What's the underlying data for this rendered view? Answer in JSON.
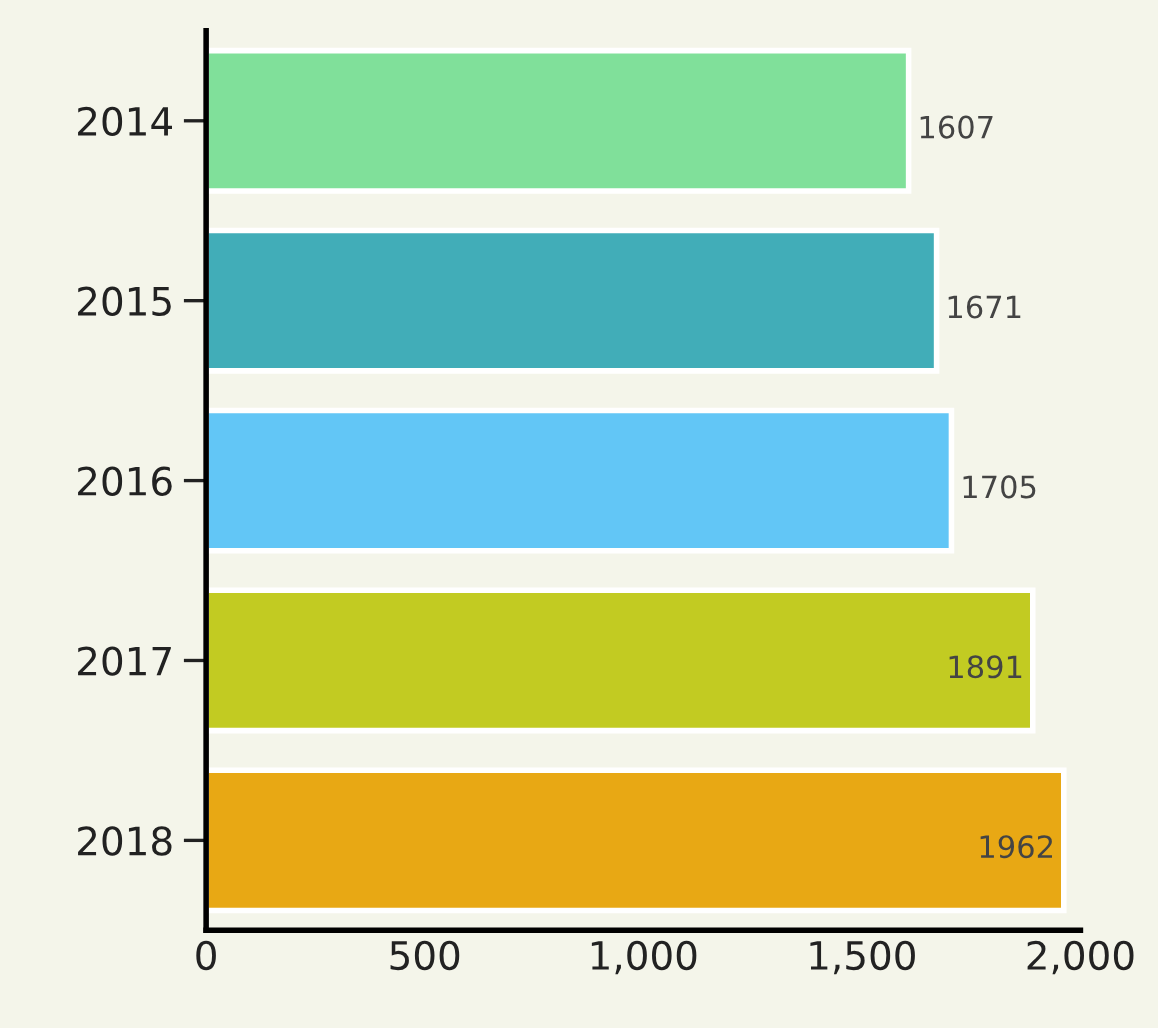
{
  "chart_data": {
    "type": "bar",
    "orientation": "horizontal",
    "categories": [
      "2014",
      "2015",
      "2016",
      "2017",
      "2018"
    ],
    "values": [
      1607,
      1671,
      1705,
      1891,
      1962
    ],
    "colors": [
      "#80e09a",
      "#41adb8",
      "#62c6f6",
      "#c2cb22",
      "#e8a814"
    ],
    "xlim": [
      0,
      2000
    ],
    "xticks": [
      0,
      500,
      {
        "value": 1000,
        "label": "1,000"
      },
      {
        "value": 1500,
        "label": "1,500"
      },
      {
        "value": 2000,
        "label": "2,000"
      }
    ],
    "data_labels": true,
    "grid": false,
    "legend": false
  }
}
